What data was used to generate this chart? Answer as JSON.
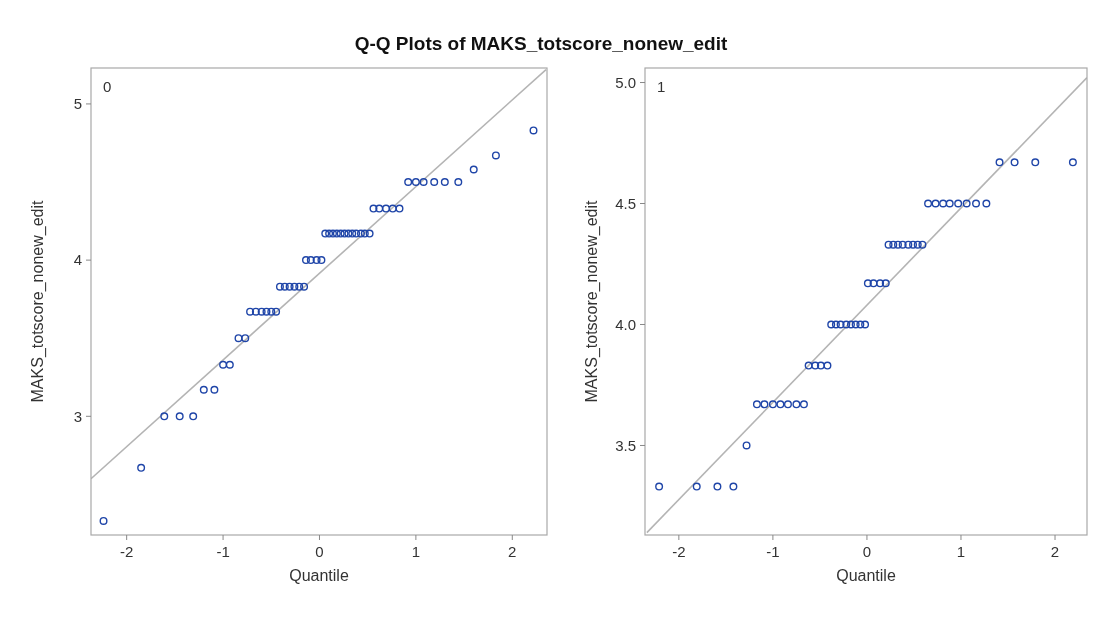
{
  "chart_data": [
    {
      "type": "scatter",
      "title": "Q-Q Plots of MAKS_totscore_nonew_edit",
      "xlabel": "Quantile",
      "ylabel": "MAKS_totscore_nonew_edit",
      "annotations": [
        "0"
      ],
      "xlim": [
        -2.37,
        2.36
      ],
      "ylim": [
        2.24,
        5.23
      ],
      "xticks": [
        -2,
        -1,
        0,
        1,
        2
      ],
      "yticks": [
        3,
        4,
        5
      ],
      "grid": false,
      "marker": "circle",
      "series": [
        {
          "type": "line",
          "color": "#b4b4b4",
          "marker": "none",
          "x": [
            -2.37,
            2.35
          ],
          "values": [
            2.6,
            5.22
          ]
        },
        {
          "color": "#1f45a8",
          "x": [
            -2.24,
            -1.85,
            -1.61,
            -1.45,
            -1.31,
            -1.2,
            -1.09,
            -1.0,
            -0.93,
            -0.84,
            -0.77,
            -0.72,
            -0.66,
            -0.6,
            -0.55,
            -0.5,
            -0.45,
            -0.41,
            -0.36,
            -0.31,
            -0.26,
            -0.21,
            -0.16,
            -0.14,
            -0.09,
            -0.03,
            0.02,
            0.06,
            0.1,
            0.14,
            0.18,
            0.22,
            0.26,
            0.3,
            0.34,
            0.38,
            0.43,
            0.47,
            0.52,
            0.56,
            0.62,
            0.69,
            0.76,
            0.83,
            0.92,
            1.0,
            1.08,
            1.19,
            1.3,
            1.44,
            1.6,
            1.83,
            2.22
          ],
          "values": [
            2.33,
            2.67,
            3,
            3,
            3,
            3.17,
            3.17,
            3.33,
            3.33,
            3.5,
            3.5,
            3.67,
            3.67,
            3.67,
            3.67,
            3.67,
            3.67,
            3.83,
            3.83,
            3.83,
            3.83,
            3.83,
            3.83,
            4,
            4,
            4,
            4,
            4.17,
            4.17,
            4.17,
            4.17,
            4.17,
            4.17,
            4.17,
            4.17,
            4.17,
            4.17,
            4.17,
            4.17,
            4.33,
            4.33,
            4.33,
            4.33,
            4.33,
            4.5,
            4.5,
            4.5,
            4.5,
            4.5,
            4.5,
            4.58,
            4.67,
            4.83
          ]
        }
      ]
    },
    {
      "type": "scatter",
      "xlabel": "Quantile",
      "ylabel": "MAKS_totscore_nonew_edit",
      "annotations": [
        "1"
      ],
      "xlim": [
        -2.36,
        2.34
      ],
      "ylim": [
        3.13,
        5.06
      ],
      "xticks": [
        -2,
        -1,
        0,
        1,
        2
      ],
      "yticks": [
        3.5,
        {
          "value": 4,
          "label": "4.0"
        },
        4.5,
        {
          "value": 5,
          "label": "5.0"
        }
      ],
      "grid": false,
      "marker": "circle",
      "series": [
        {
          "type": "line",
          "color": "#b4b4b4",
          "marker": "none",
          "x": [
            -2.34,
            2.34
          ],
          "values": [
            3.14,
            5.02
          ]
        },
        {
          "color": "#1f45a8",
          "x": [
            -2.21,
            -1.81,
            -1.59,
            -1.42,
            -1.28,
            -1.17,
            -1.09,
            -1.0,
            -0.92,
            -0.84,
            -0.75,
            -0.67,
            -0.62,
            -0.55,
            -0.49,
            -0.42,
            -0.38,
            -0.33,
            -0.28,
            -0.22,
            -0.17,
            -0.12,
            -0.07,
            -0.02,
            0.01,
            0.07,
            0.14,
            0.2,
            0.23,
            0.28,
            0.33,
            0.38,
            0.44,
            0.49,
            0.54,
            0.59,
            0.65,
            0.73,
            0.81,
            0.88,
            0.97,
            1.06,
            1.16,
            1.27,
            1.41,
            1.57,
            1.79,
            2.19
          ],
          "values": [
            3.33,
            3.33,
            3.33,
            3.33,
            3.5,
            3.67,
            3.67,
            3.67,
            3.67,
            3.67,
            3.67,
            3.67,
            3.83,
            3.83,
            3.83,
            3.83,
            4,
            4,
            4,
            4,
            4,
            4,
            4,
            4,
            4.17,
            4.17,
            4.17,
            4.17,
            4.33,
            4.33,
            4.33,
            4.33,
            4.33,
            4.33,
            4.33,
            4.33,
            4.5,
            4.5,
            4.5,
            4.5,
            4.5,
            4.5,
            4.5,
            4.5,
            4.67,
            4.67,
            4.67,
            4.67
          ]
        }
      ]
    }
  ]
}
